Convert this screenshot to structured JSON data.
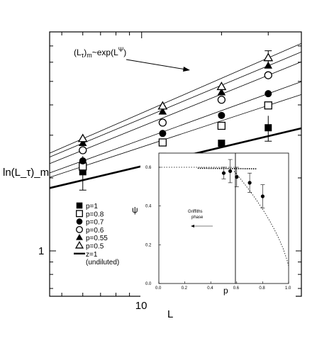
{
  "chart_data": [
    {
      "type": "scatter",
      "xlabel": "L",
      "ylabel": "ln(L_τ)_m",
      "x_scale": "log",
      "y_scale": "log",
      "x_tick_labels": [
        "10"
      ],
      "y_tick_labels": [
        "1"
      ],
      "annotation": "(L_τ)_m ~ exp(L^Ψ)",
      "legend_position": "lower-left",
      "series": [
        {
          "name": "p=1",
          "marker": "filled-square",
          "x": [
            6,
            12,
            20,
            30
          ],
          "y": [
            2.12,
            2.45,
            2.78,
            3.22
          ]
        },
        {
          "name": "p=0.8",
          "marker": "open-square",
          "x": [
            6,
            12,
            20,
            30
          ],
          "y": [
            2.23,
            2.8,
            3.28,
            3.98
          ]
        },
        {
          "name": "p=0.7",
          "marker": "filled-circle",
          "x": [
            6,
            12,
            20,
            30
          ],
          "y": [
            2.35,
            3.05,
            3.62,
            4.45
          ]
        },
        {
          "name": "p=0.6",
          "marker": "open-circle",
          "x": [
            6,
            12,
            20,
            30
          ],
          "y": [
            2.6,
            3.38,
            4.2,
            5.3
          ]
        },
        {
          "name": "p=0.55",
          "marker": "filled-triangle",
          "x": [
            6,
            12,
            20,
            30
          ],
          "y": [
            2.78,
            3.75,
            4.5,
            5.8
          ]
        },
        {
          "name": "p=0.5",
          "marker": "open-triangle",
          "x": [
            6,
            12,
            20,
            30
          ],
          "y": [
            2.9,
            3.95,
            4.75,
            6.25
          ]
        }
      ],
      "reference_line": {
        "name": "z=1",
        "sublabel": "(undiluted)"
      },
      "marker_colors": {
        "markers": "#000000",
        "lines": "#000000"
      }
    },
    {
      "type": "scatter",
      "inset": true,
      "xlabel": "p",
      "ylabel": "ψ",
      "xlim": [
        0,
        1
      ],
      "ylim": [
        0,
        0.6
      ],
      "x_ticks": [
        "0.0",
        "0.2",
        "0.4",
        "0.6",
        "0.8",
        "1.0"
      ],
      "y_ticks": [
        "0.0",
        "0.2",
        "0.4",
        "0.6"
      ],
      "annotation_lines": [
        "Griffiths",
        "phase"
      ],
      "phase_boundary_p": 0.59,
      "points": [
        {
          "p": 0.5,
          "psi": 0.57,
          "err": 0.03
        },
        {
          "p": 0.55,
          "psi": 0.58,
          "err": 0.06
        },
        {
          "p": 0.6,
          "psi": 0.55,
          "err": 0.05
        },
        {
          "p": 0.7,
          "psi": 0.52,
          "err": 0.05
        },
        {
          "p": 0.8,
          "psi": 0.45,
          "err": 0.06
        }
      ]
    }
  ]
}
